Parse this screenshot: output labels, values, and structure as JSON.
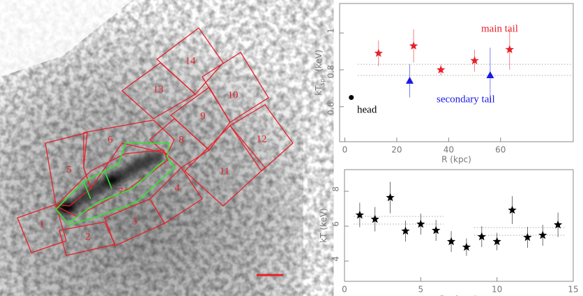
{
  "image": {
    "region_labels": [
      "1",
      "2",
      "3",
      "4",
      "5",
      "6",
      "7",
      "8",
      "9",
      "10",
      "11",
      "12",
      "13",
      "14"
    ]
  },
  "chart_data": [
    {
      "type": "scatter",
      "xlabel": "R (kpc)",
      "ylabel": [
        "kT",
        "spe",
        "(keV)"
      ],
      "xlim": [
        -2,
        88
      ],
      "ylim": [
        0.41,
        1.16
      ],
      "xticks": [
        0,
        20,
        40,
        60
      ],
      "yticks": [
        0.6,
        0.8,
        {
          "value": 1,
          "label": "1"
        }
      ],
      "series": [
        {
          "marker": "circle",
          "color": "#000000",
          "x": [
            2.5
          ],
          "values": [
            0.65
          ]
        },
        {
          "marker": "star",
          "color": "#e8202a",
          "x": [
            13,
            26.5,
            37,
            50,
            63.5
          ],
          "values": [
            0.89,
            0.93,
            0.8,
            0.85,
            0.91
          ],
          "errors": [
            0.07,
            0.09,
            0.03,
            0.06,
            0.11
          ]
        },
        {
          "marker": "triangle",
          "color": "#1a1ae6",
          "x": [
            25,
            56
          ],
          "values": [
            0.74,
            0.77
          ],
          "errors": [
            0.09,
            0.15
          ]
        }
      ],
      "hlines": [
        {
          "y": 0.83,
          "x": [
            5,
            88
          ]
        },
        {
          "y": 0.77,
          "x": [
            5,
            88
          ]
        }
      ],
      "annotations": [
        {
          "text": "main tail",
          "color": "#e8202a"
        },
        {
          "text": "secondary tail",
          "color": "#1a1ae6"
        },
        {
          "text": "head",
          "color": "#000000"
        }
      ]
    },
    {
      "type": "scatter",
      "xlabel": "Region #",
      "ylabel": [
        "kT",
        "",
        "(keV)"
      ],
      "xlim": [
        0,
        15
      ],
      "ylim": [
        2.84,
        9.24
      ],
      "xticks": [
        0,
        5,
        10,
        15
      ],
      "yticks": [
        4,
        6,
        8
      ],
      "series": [
        {
          "marker": "star",
          "color": "#000000",
          "x": [
            1,
            2,
            3,
            4,
            5,
            6,
            7,
            8,
            9,
            10,
            11,
            12,
            13,
            14
          ],
          "values": [
            6.64,
            6.4,
            7.64,
            5.72,
            6.12,
            5.76,
            5.12,
            4.8,
            5.4,
            5.12,
            6.92,
            5.36,
            5.48,
            6.08
          ],
          "errors": [
            0.7,
            0.7,
            0.9,
            0.6,
            0.6,
            0.6,
            0.6,
            0.5,
            0.6,
            0.5,
            0.8,
            0.6,
            0.6,
            0.7
          ]
        }
      ],
      "hlines": [
        {
          "y": 6.56,
          "x": [
            0.6,
            6.5
          ]
        },
        {
          "y": 6.12,
          "x": [
            0.6,
            6.5
          ]
        },
        {
          "y": 5.92,
          "x": [
            8.5,
            14.5
          ]
        },
        {
          "y": 5.48,
          "x": [
            8.5,
            14.5
          ]
        }
      ],
      "annotations": []
    }
  ]
}
